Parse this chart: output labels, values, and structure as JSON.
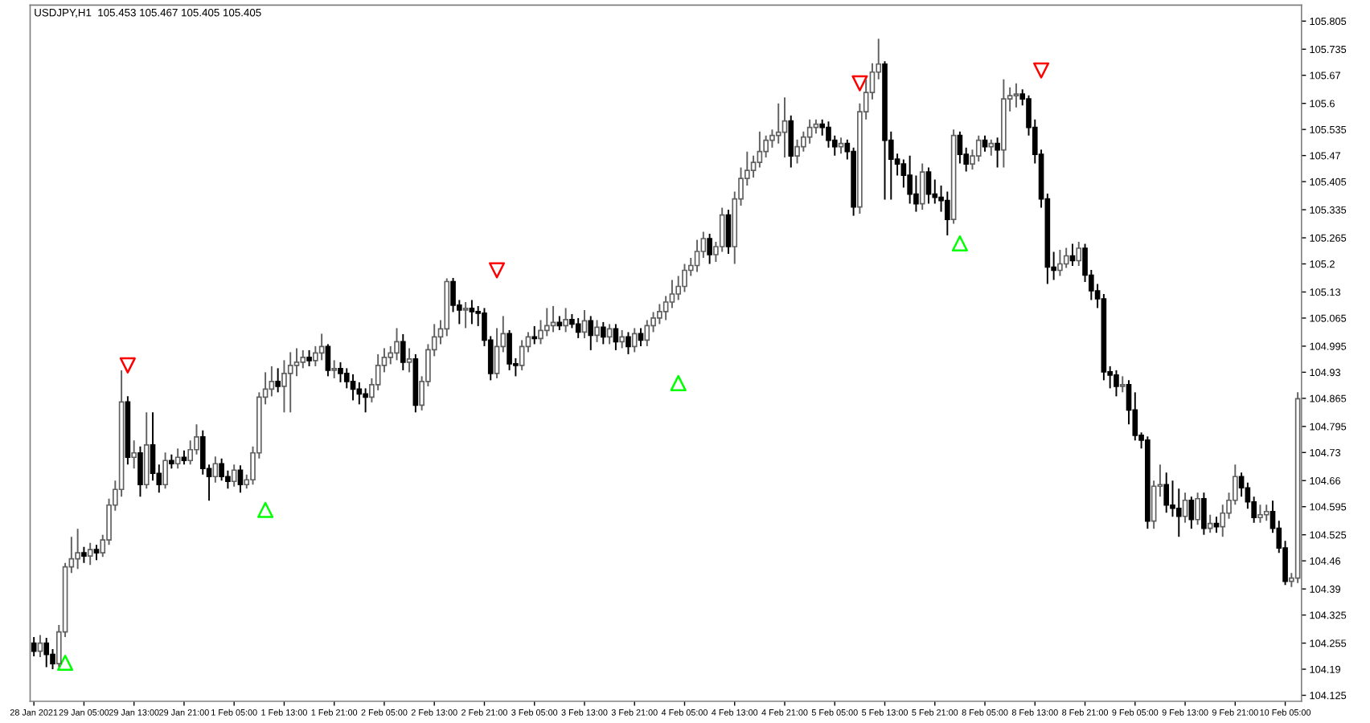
{
  "chart_data": {
    "type": "candlestick",
    "title": "USDJPY,H1  105.453 105.467 105.405 105.405",
    "categories": [
      "28 Jan 2021",
      null,
      null,
      null,
      null,
      null,
      null,
      null,
      "29 Jan 05:00",
      null,
      null,
      null,
      null,
      null,
      null,
      null,
      "29 Jan 13:00",
      null,
      null,
      null,
      null,
      null,
      null,
      null,
      "29 Jan 21:00",
      null,
      null,
      null,
      null,
      null,
      null,
      null,
      "1 Feb 05:00",
      null,
      null,
      null,
      null,
      null,
      null,
      null,
      "1 Feb 13:00",
      null,
      null,
      null,
      null,
      null,
      null,
      null,
      "1 Feb 21:00",
      null,
      null,
      null,
      null,
      null,
      null,
      null,
      "2 Feb 05:00",
      null,
      null,
      null,
      null,
      null,
      null,
      null,
      "2 Feb 13:00",
      null,
      null,
      null,
      null,
      null,
      null,
      null,
      "2 Feb 21:00",
      null,
      null,
      null,
      null,
      null,
      null,
      null,
      "3 Feb 05:00",
      null,
      null,
      null,
      null,
      null,
      null,
      null,
      "3 Feb 13:00",
      null,
      null,
      null,
      null,
      null,
      null,
      null,
      "3 Feb 21:00",
      null,
      null,
      null,
      null,
      null,
      null,
      null,
      "4 Feb 05:00",
      null,
      null,
      null,
      null,
      null,
      null,
      null,
      "4 Feb 13:00",
      null,
      null,
      null,
      null,
      null,
      null,
      null,
      "4 Feb 21:00",
      null,
      null,
      null,
      null,
      null,
      null,
      null,
      "5 Feb 05:00",
      null,
      null,
      null,
      null,
      null,
      null,
      null,
      "5 Feb 13:00",
      null,
      null,
      null,
      null,
      null,
      null,
      null,
      "5 Feb 21:00",
      null,
      null,
      null,
      null,
      null,
      null,
      null,
      "8 Feb 05:00",
      null,
      null,
      null,
      null,
      null,
      null,
      null,
      "8 Feb 13:00",
      null,
      null,
      null,
      null,
      null,
      null,
      null,
      "8 Feb 21:00",
      null,
      null,
      null,
      null,
      null,
      null,
      null,
      "9 Feb 05:00",
      null,
      null,
      null,
      null,
      null,
      null,
      null,
      "9 Feb 13:00",
      null,
      null,
      null,
      null,
      null,
      null,
      null,
      "9 Feb 21:00",
      null,
      null,
      null,
      null,
      null,
      null,
      null,
      "10 Feb 05:00",
      null,
      null
    ],
    "ohlc": [
      [
        104.255,
        104.27,
        104.222,
        104.235
      ],
      [
        104.235,
        104.275,
        104.22,
        104.255
      ],
      [
        104.255,
        104.268,
        104.195,
        104.227
      ],
      [
        104.227,
        104.24,
        104.19,
        104.204
      ],
      [
        104.204,
        104.3,
        104.196,
        104.283
      ],
      [
        104.283,
        104.455,
        104.27,
        104.445
      ],
      [
        104.445,
        104.52,
        104.43,
        104.465
      ],
      [
        104.465,
        104.54,
        104.44,
        104.48
      ],
      [
        104.48,
        104.495,
        104.455,
        104.472
      ],
      [
        104.472,
        104.505,
        104.45,
        104.488
      ],
      [
        104.488,
        104.5,
        104.462,
        104.48
      ],
      [
        104.48,
        104.525,
        104.47,
        104.512
      ],
      [
        104.512,
        104.615,
        104.5,
        104.599
      ],
      [
        104.599,
        104.66,
        104.585,
        104.638
      ],
      [
        104.638,
        104.935,
        104.62,
        104.856
      ],
      [
        104.856,
        104.87,
        104.7,
        104.718
      ],
      [
        104.718,
        104.76,
        104.69,
        104.729
      ],
      [
        104.729,
        104.745,
        104.62,
        104.65
      ],
      [
        104.65,
        104.83,
        104.64,
        104.749
      ],
      [
        104.749,
        104.83,
        104.66,
        104.678
      ],
      [
        104.678,
        104.7,
        104.63,
        104.65
      ],
      [
        104.65,
        104.73,
        104.64,
        104.71
      ],
      [
        104.71,
        104.725,
        104.69,
        104.702
      ],
      [
        104.702,
        104.74,
        104.69,
        104.718
      ],
      [
        104.718,
        104.735,
        104.7,
        104.71
      ],
      [
        104.71,
        104.76,
        104.7,
        104.737
      ],
      [
        104.737,
        104.8,
        104.725,
        104.769
      ],
      [
        104.769,
        104.785,
        104.675,
        104.69
      ],
      [
        104.69,
        104.7,
        104.61,
        104.67
      ],
      [
        104.67,
        104.72,
        104.655,
        104.702
      ],
      [
        104.702,
        104.715,
        104.66,
        104.67
      ],
      [
        104.67,
        104.685,
        104.64,
        104.658
      ],
      [
        104.658,
        104.7,
        104.645,
        104.686
      ],
      [
        104.686,
        104.698,
        104.63,
        104.65
      ],
      [
        104.65,
        104.675,
        104.64,
        104.662
      ],
      [
        104.662,
        104.745,
        104.65,
        104.729
      ],
      [
        104.729,
        104.88,
        104.715,
        104.868
      ],
      [
        104.868,
        104.93,
        104.85,
        104.888
      ],
      [
        104.888,
        104.945,
        104.87,
        104.907
      ],
      [
        104.907,
        104.94,
        104.88,
        104.895
      ],
      [
        104.895,
        104.96,
        104.83,
        104.927
      ],
      [
        104.927,
        104.98,
        104.83,
        104.947
      ],
      [
        104.947,
        104.99,
        104.92,
        104.955
      ],
      [
        104.955,
        104.985,
        104.94,
        104.967
      ],
      [
        104.967,
        104.985,
        104.945,
        104.959
      ],
      [
        104.959,
        104.995,
        104.945,
        104.978
      ],
      [
        104.978,
        105.026,
        104.96,
        104.994
      ],
      [
        104.994,
        105.0,
        104.92,
        104.935
      ],
      [
        104.935,
        104.96,
        104.915,
        104.939
      ],
      [
        104.939,
        104.955,
        104.905,
        104.927
      ],
      [
        104.927,
        104.94,
        104.89,
        104.907
      ],
      [
        104.907,
        104.925,
        104.86,
        104.888
      ],
      [
        104.888,
        104.905,
        104.85,
        104.876
      ],
      [
        104.876,
        104.89,
        104.83,
        104.868
      ],
      [
        104.868,
        104.915,
        104.855,
        104.899
      ],
      [
        104.899,
        104.975,
        104.885,
        104.947
      ],
      [
        104.947,
        104.99,
        104.93,
        104.967
      ],
      [
        104.967,
        104.995,
        104.95,
        104.978
      ],
      [
        104.978,
        105.04,
        104.96,
        105.006
      ],
      [
        105.006,
        105.025,
        104.935,
        104.955
      ],
      [
        104.955,
        104.99,
        104.93,
        104.963
      ],
      [
        104.963,
        104.975,
        104.83,
        104.848
      ],
      [
        104.848,
        104.92,
        104.835,
        104.907
      ],
      [
        104.907,
        105.0,
        104.895,
        104.986
      ],
      [
        104.986,
        105.05,
        104.97,
        105.018
      ],
      [
        105.018,
        105.06,
        105.0,
        105.038
      ],
      [
        105.038,
        105.164,
        105.02,
        105.156
      ],
      [
        105.156,
        105.165,
        105.08,
        105.097
      ],
      [
        105.097,
        105.11,
        105.05,
        105.085
      ],
      [
        105.085,
        105.105,
        105.04,
        105.089
      ],
      [
        105.089,
        105.11,
        105.05,
        105.081
      ],
      [
        105.081,
        105.095,
        105.045,
        105.077
      ],
      [
        105.077,
        105.09,
        104.995,
        105.01
      ],
      [
        105.01,
        105.02,
        104.91,
        104.927
      ],
      [
        104.927,
        105.04,
        104.915,
        104.994
      ],
      [
        104.994,
        105.07,
        104.98,
        105.026
      ],
      [
        105.026,
        105.035,
        104.935,
        104.951
      ],
      [
        104.951,
        104.965,
        104.92,
        104.947
      ],
      [
        104.947,
        105.01,
        104.935,
        104.994
      ],
      [
        104.994,
        105.03,
        104.98,
        105.018
      ],
      [
        105.018,
        105.045,
        105.0,
        105.014
      ],
      [
        105.014,
        105.06,
        105.0,
        105.034
      ],
      [
        105.034,
        105.09,
        105.02,
        105.046
      ],
      [
        105.046,
        105.095,
        105.03,
        105.054
      ],
      [
        105.054,
        105.07,
        105.035,
        105.046
      ],
      [
        105.046,
        105.09,
        105.03,
        105.061
      ],
      [
        105.061,
        105.075,
        105.04,
        105.05
      ],
      [
        105.05,
        105.065,
        105.015,
        105.03
      ],
      [
        105.03,
        105.085,
        105.015,
        105.058
      ],
      [
        105.058,
        105.07,
        104.985,
        105.022
      ],
      [
        105.022,
        105.06,
        105.005,
        105.042
      ],
      [
        105.042,
        105.055,
        105.0,
        105.018
      ],
      [
        105.018,
        105.05,
        105.0,
        105.038
      ],
      [
        105.038,
        105.05,
        104.985,
        105.006
      ],
      [
        105.006,
        105.035,
        104.99,
        105.018
      ],
      [
        105.018,
        105.03,
        104.975,
        104.994
      ],
      [
        104.994,
        105.04,
        104.98,
        105.026
      ],
      [
        105.026,
        105.04,
        104.995,
        105.01
      ],
      [
        105.01,
        105.06,
        104.995,
        105.046
      ],
      [
        105.046,
        105.08,
        105.03,
        105.065
      ],
      [
        105.065,
        105.1,
        105.05,
        105.081
      ],
      [
        105.081,
        105.12,
        105.06,
        105.105
      ],
      [
        105.105,
        105.16,
        105.09,
        105.125
      ],
      [
        105.125,
        105.17,
        105.11,
        105.144
      ],
      [
        105.144,
        105.2,
        105.13,
        105.184
      ],
      [
        105.184,
        105.215,
        105.17,
        105.196
      ],
      [
        105.196,
        105.26,
        105.18,
        105.231
      ],
      [
        105.231,
        105.28,
        105.215,
        105.263
      ],
      [
        105.263,
        105.275,
        105.2,
        105.223
      ],
      [
        105.223,
        105.255,
        105.205,
        105.243
      ],
      [
        105.243,
        105.34,
        105.23,
        105.322
      ],
      [
        105.322,
        105.335,
        105.225,
        105.243
      ],
      [
        105.243,
        105.38,
        105.2,
        105.362
      ],
      [
        105.362,
        105.44,
        105.345,
        105.413
      ],
      [
        105.413,
        105.48,
        105.395,
        105.433
      ],
      [
        105.433,
        105.47,
        105.415,
        105.453
      ],
      [
        105.453,
        105.53,
        105.44,
        105.48
      ],
      [
        105.48,
        105.52,
        105.465,
        105.508
      ],
      [
        105.508,
        105.535,
        105.49,
        105.52
      ],
      [
        105.52,
        105.6,
        105.5,
        105.528
      ],
      [
        105.528,
        105.615,
        105.465,
        105.556
      ],
      [
        105.556,
        105.57,
        105.44,
        105.469
      ],
      [
        105.469,
        105.51,
        105.45,
        105.492
      ],
      [
        105.492,
        105.53,
        105.48,
        105.516
      ],
      [
        105.516,
        105.56,
        105.5,
        105.54
      ],
      [
        105.54,
        105.56,
        105.525,
        105.548
      ],
      [
        105.548,
        105.56,
        105.52,
        105.54
      ],
      [
        105.54,
        105.555,
        105.49,
        105.508
      ],
      [
        105.508,
        105.52,
        105.47,
        105.492
      ],
      [
        105.492,
        105.515,
        105.475,
        105.5
      ],
      [
        105.5,
        105.51,
        105.46,
        105.48
      ],
      [
        105.48,
        105.49,
        105.32,
        105.342
      ],
      [
        105.342,
        105.6,
        105.325,
        105.579
      ],
      [
        105.579,
        105.66,
        105.56,
        105.627
      ],
      [
        105.627,
        105.7,
        105.61,
        105.678
      ],
      [
        105.678,
        105.761,
        105.66,
        105.698
      ],
      [
        105.698,
        105.705,
        105.36,
        105.508
      ],
      [
        105.508,
        105.53,
        105.36,
        105.461
      ],
      [
        105.461,
        105.475,
        105.42,
        105.449
      ],
      [
        105.449,
        105.46,
        105.39,
        105.421
      ],
      [
        105.421,
        105.47,
        105.35,
        105.374
      ],
      [
        105.374,
        105.42,
        105.33,
        105.35
      ],
      [
        105.35,
        105.45,
        105.335,
        105.429
      ],
      [
        105.429,
        105.44,
        105.35,
        105.374
      ],
      [
        105.374,
        105.41,
        105.35,
        105.366
      ],
      [
        105.366,
        105.395,
        105.33,
        105.358
      ],
      [
        105.358,
        105.38,
        105.271,
        105.311
      ],
      [
        105.311,
        105.535,
        105.3,
        105.52
      ],
      [
        105.52,
        105.53,
        105.45,
        105.473
      ],
      [
        105.473,
        105.49,
        105.43,
        105.449
      ],
      [
        105.449,
        105.485,
        105.435,
        105.469
      ],
      [
        105.469,
        105.52,
        105.455,
        105.508
      ],
      [
        105.508,
        105.52,
        105.48,
        105.492
      ],
      [
        105.492,
        105.51,
        105.47,
        105.5
      ],
      [
        105.5,
        105.515,
        105.44,
        105.484
      ],
      [
        105.484,
        105.66,
        105.44,
        105.611
      ],
      [
        105.611,
        105.64,
        105.58,
        105.619
      ],
      [
        105.619,
        105.65,
        105.59,
        105.623
      ],
      [
        105.623,
        105.635,
        105.595,
        105.611
      ],
      [
        105.611,
        105.62,
        105.52,
        105.54
      ],
      [
        105.54,
        105.56,
        105.45,
        105.473
      ],
      [
        105.473,
        105.485,
        105.34,
        105.362
      ],
      [
        105.362,
        105.375,
        105.15,
        105.192
      ],
      [
        105.192,
        105.23,
        105.16,
        105.184
      ],
      [
        105.184,
        105.235,
        105.17,
        105.2
      ],
      [
        105.2,
        105.24,
        105.19,
        105.22
      ],
      [
        105.22,
        105.25,
        105.195,
        105.208
      ],
      [
        105.208,
        105.255,
        105.195,
        105.239
      ],
      [
        105.239,
        105.25,
        105.155,
        105.172
      ],
      [
        105.172,
        105.185,
        105.11,
        105.133
      ],
      [
        105.133,
        105.15,
        105.09,
        105.113
      ],
      [
        105.113,
        105.125,
        104.91,
        104.931
      ],
      [
        104.931,
        104.945,
        104.89,
        104.923
      ],
      [
        104.923,
        104.935,
        104.87,
        104.895
      ],
      [
        104.895,
        104.92,
        104.88,
        104.899
      ],
      [
        104.899,
        104.91,
        104.8,
        104.836
      ],
      [
        104.836,
        104.88,
        104.76,
        104.773
      ],
      [
        104.773,
        104.78,
        104.74,
        104.761
      ],
      [
        104.761,
        104.77,
        104.54,
        104.559
      ],
      [
        104.559,
        104.66,
        104.54,
        104.646
      ],
      [
        104.646,
        104.7,
        104.62,
        104.65
      ],
      [
        104.65,
        104.68,
        104.58,
        104.599
      ],
      [
        104.599,
        104.66,
        104.57,
        104.591
      ],
      [
        104.591,
        104.64,
        104.52,
        104.571
      ],
      [
        104.571,
        104.63,
        104.555,
        104.611
      ],
      [
        104.611,
        104.62,
        104.54,
        104.563
      ],
      [
        104.563,
        104.63,
        104.55,
        104.615
      ],
      [
        104.615,
        104.63,
        104.525,
        104.541
      ],
      [
        104.541,
        104.575,
        104.53,
        104.553
      ],
      [
        104.553,
        104.57,
        104.53,
        104.545
      ],
      [
        104.545,
        104.6,
        104.52,
        104.579
      ],
      [
        104.579,
        104.63,
        104.565,
        104.611
      ],
      [
        104.611,
        104.7,
        104.6,
        104.67
      ],
      [
        104.67,
        104.68,
        104.62,
        104.642
      ],
      [
        104.642,
        104.655,
        104.59,
        104.607
      ],
      [
        104.607,
        104.62,
        104.555,
        104.568
      ],
      [
        104.568,
        104.6,
        104.555,
        104.575
      ],
      [
        104.575,
        104.6,
        104.56,
        104.583
      ],
      [
        104.583,
        104.61,
        104.53,
        104.541
      ],
      [
        104.541,
        104.56,
        104.48,
        104.492
      ],
      [
        104.492,
        104.51,
        104.4,
        104.409
      ],
      [
        104.409,
        104.43,
        104.395,
        104.417
      ],
      [
        104.417,
        104.88,
        104.405,
        104.864
      ]
    ],
    "series": [
      {
        "type": "scatter",
        "color": "#00ff00",
        "marker": "triangle",
        "values": [
          null,
          null,
          null,
          null,
          null,
          104.206,
          null,
          null,
          null,
          null,
          null,
          null,
          null,
          null,
          null,
          null,
          null,
          null,
          null,
          null,
          null,
          null,
          null,
          null,
          null,
          null,
          null,
          null,
          null,
          null,
          null,
          null,
          null,
          null,
          null,
          null,
          null,
          104.587,
          null,
          null,
          null,
          null,
          null,
          null,
          null,
          null,
          null,
          null,
          null,
          null,
          null,
          null,
          null,
          null,
          null,
          null,
          null,
          null,
          null,
          null,
          null,
          null,
          null,
          null,
          null,
          null,
          null,
          null,
          null,
          null,
          null,
          null,
          null,
          null,
          null,
          null,
          null,
          null,
          null,
          null,
          null,
          null,
          null,
          null,
          null,
          null,
          null,
          null,
          null,
          null,
          null,
          null,
          null,
          null,
          null,
          null,
          null,
          null,
          null,
          null,
          null,
          null,
          null,
          104.903,
          null,
          null,
          null,
          null,
          null,
          null,
          null,
          null,
          null,
          null,
          null,
          null,
          null,
          null,
          null,
          null,
          null,
          null,
          null,
          null,
          null,
          null,
          null,
          null,
          null,
          null,
          null,
          null,
          null,
          null,
          null,
          null,
          null,
          null,
          null,
          null,
          null,
          null,
          null,
          null,
          null,
          null,
          null,
          null,
          105.251,
          null,
          null,
          null,
          null,
          null,
          null,
          null,
          null,
          null,
          null,
          null,
          null,
          null,
          null,
          null,
          null,
          null,
          null,
          null,
          null,
          null,
          null,
          null,
          null,
          null,
          null,
          null,
          null,
          null,
          null,
          null,
          null,
          null,
          null,
          null,
          null,
          null,
          null,
          null,
          null,
          null,
          null,
          null,
          null,
          null,
          null,
          null,
          null,
          null,
          null,
          null,
          null,
          null,
          null
        ]
      },
      {
        "type": "scatter",
        "color": "#ff0000",
        "marker": "triangle_down",
        "values": [
          null,
          null,
          null,
          null,
          null,
          null,
          null,
          null,
          null,
          null,
          null,
          null,
          null,
          null,
          null,
          104.947,
          null,
          null,
          null,
          null,
          null,
          null,
          null,
          null,
          null,
          null,
          null,
          null,
          null,
          null,
          null,
          null,
          null,
          null,
          null,
          null,
          null,
          null,
          null,
          null,
          null,
          null,
          null,
          null,
          null,
          null,
          null,
          null,
          null,
          null,
          null,
          null,
          null,
          null,
          null,
          null,
          null,
          null,
          null,
          null,
          null,
          null,
          null,
          null,
          null,
          null,
          null,
          null,
          null,
          null,
          null,
          null,
          null,
          null,
          105.184,
          null,
          null,
          null,
          null,
          null,
          null,
          null,
          null,
          null,
          null,
          null,
          null,
          null,
          null,
          null,
          null,
          null,
          null,
          null,
          null,
          null,
          null,
          null,
          null,
          null,
          null,
          null,
          null,
          null,
          null,
          null,
          null,
          null,
          null,
          null,
          null,
          null,
          null,
          null,
          null,
          null,
          null,
          null,
          null,
          null,
          null,
          null,
          null,
          null,
          null,
          null,
          null,
          null,
          null,
          null,
          null,
          null,
          105.65,
          null,
          null,
          null,
          null,
          null,
          null,
          null,
          null,
          null,
          null,
          null,
          null,
          null,
          null,
          null,
          null,
          null,
          null,
          null,
          null,
          null,
          null,
          null,
          null,
          null,
          null,
          null,
          null,
          105.682,
          null,
          null,
          null,
          null,
          null,
          null,
          null,
          null,
          null,
          null,
          null,
          null,
          null,
          null,
          null,
          null,
          null,
          null,
          null,
          null,
          null,
          null,
          null,
          null,
          null,
          null,
          null,
          null,
          null,
          null,
          null,
          null,
          null,
          null,
          null,
          null,
          null,
          null,
          null,
          null,
          null
        ]
      }
    ],
    "ylim": [
      104.11,
      105.845
    ],
    "yticks": [
      104.125,
      104.19,
      104.255,
      104.325,
      104.39,
      104.46,
      104.525,
      104.595,
      104.66,
      104.73,
      104.795,
      104.865,
      104.93,
      104.995,
      105.065,
      105.13,
      105.2,
      105.265,
      105.335,
      105.405,
      105.47,
      105.535,
      105.6,
      105.67,
      105.735,
      105.805
    ]
  }
}
